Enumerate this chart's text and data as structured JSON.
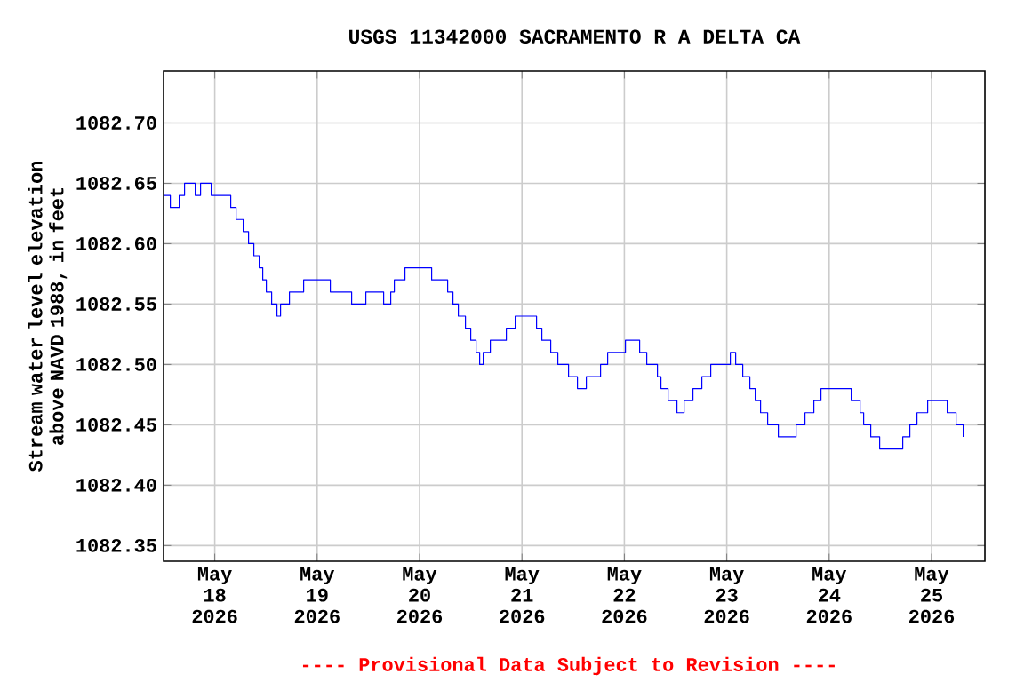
{
  "chart_data": {
    "type": "step",
    "title": "USGS 11342000 SACRAMENTO R A DELTA CA",
    "ylabel": "Stream water level elevation above NAVD 1988, in feet",
    "annotations": [
      "---- Provisional Data Subject to Revision ----"
    ],
    "x": [
      "2026-05-17T12:00",
      "2026-05-17T13:35",
      "2026-05-17T15:40",
      "2026-05-17T16:55",
      "2026-05-17T19:25",
      "2026-05-17T20:40",
      "2026-05-17T23:10",
      "2026-05-18T03:45",
      "2026-05-18T05:00",
      "2026-05-18T06:40",
      "2026-05-18T07:55",
      "2026-05-18T09:10",
      "2026-05-18T10:25",
      "2026-05-18T11:15",
      "2026-05-18T12:05",
      "2026-05-18T13:20",
      "2026-05-18T14:35",
      "2026-05-18T15:25",
      "2026-05-18T17:30",
      "2026-05-18T20:50",
      "2026-05-19T03:05",
      "2026-05-19T08:05",
      "2026-05-19T11:25",
      "2026-05-19T15:35",
      "2026-05-19T17:15",
      "2026-05-19T18:05",
      "2026-05-19T20:35",
      "2026-05-20T02:50",
      "2026-05-20T06:35",
      "2026-05-20T07:50",
      "2026-05-20T09:05",
      "2026-05-20T10:45",
      "2026-05-20T12:00",
      "2026-05-20T13:15",
      "2026-05-20T14:05",
      "2026-05-20T14:55",
      "2026-05-20T16:35",
      "2026-05-20T20:20",
      "2026-05-20T22:25",
      "2026-05-21T02:35",
      "2026-05-21T03:25",
      "2026-05-21T04:40",
      "2026-05-21T06:45",
      "2026-05-21T08:25",
      "2026-05-21T10:55",
      "2026-05-21T13:00",
      "2026-05-21T15:05",
      "2026-05-21T18:25",
      "2026-05-21T20:05",
      "2026-05-22T00:15",
      "2026-05-22T03:35",
      "2026-05-22T05:15",
      "2026-05-22T07:45",
      "2026-05-22T08:35",
      "2026-05-22T10:15",
      "2026-05-22T12:20",
      "2026-05-22T14:00",
      "2026-05-22T16:05",
      "2026-05-22T18:10",
      "2026-05-22T20:15",
      "2026-05-23T00:50",
      "2026-05-23T02:05",
      "2026-05-23T03:45",
      "2026-05-23T05:25",
      "2026-05-23T06:40",
      "2026-05-23T07:55",
      "2026-05-23T09:35",
      "2026-05-23T12:05",
      "2026-05-23T15:00",
      "2026-05-23T16:15",
      "2026-05-23T18:20",
      "2026-05-23T20:25",
      "2026-05-23T22:05",
      "2026-05-24T03:55",
      "2026-05-24T05:10",
      "2026-05-24T07:15",
      "2026-05-24T08:05",
      "2026-05-24T09:45",
      "2026-05-24T11:50",
      "2026-05-24T16:00",
      "2026-05-24T17:15",
      "2026-05-24T18:55",
      "2026-05-24T20:35",
      "2026-05-24T23:05",
      "2026-05-25T02:25",
      "2026-05-25T03:40",
      "2026-05-25T05:45",
      "2026-05-25T07:25"
    ],
    "series": [
      {
        "color": "#0000ff",
        "values": [
          1082.64,
          1082.63,
          1082.64,
          1082.65,
          1082.64,
          1082.65,
          1082.64,
          1082.63,
          1082.62,
          1082.61,
          1082.6,
          1082.59,
          1082.58,
          1082.57,
          1082.56,
          1082.55,
          1082.54,
          1082.55,
          1082.56,
          1082.57,
          1082.56,
          1082.55,
          1082.56,
          1082.55,
          1082.56,
          1082.57,
          1082.58,
          1082.57,
          1082.56,
          1082.55,
          1082.54,
          1082.53,
          1082.52,
          1082.51,
          1082.5,
          1082.51,
          1082.52,
          1082.53,
          1082.54,
          1082.54,
          1082.53,
          1082.52,
          1082.51,
          1082.5,
          1082.49,
          1082.48,
          1082.49,
          1082.5,
          1082.51,
          1082.52,
          1082.51,
          1082.5,
          1082.49,
          1082.48,
          1082.47,
          1082.46,
          1082.47,
          1082.48,
          1082.49,
          1082.5,
          1082.51,
          1082.5,
          1082.49,
          1082.48,
          1082.47,
          1082.46,
          1082.45,
          1082.44,
          1082.44,
          1082.45,
          1082.46,
          1082.47,
          1082.48,
          1082.48,
          1082.47,
          1082.46,
          1082.45,
          1082.44,
          1082.43,
          1082.43,
          1082.44,
          1082.45,
          1082.46,
          1082.47,
          1082.47,
          1082.46,
          1082.45,
          1082.44
        ]
      }
    ],
    "xlim": [
      "2026-05-17T12:00",
      "2026-05-25T12:30"
    ],
    "xticks": [
      {
        "value": "2026-05-18",
        "label": "May 18 2026"
      },
      {
        "value": "2026-05-19",
        "label": "May 19 2026"
      },
      {
        "value": "2026-05-20",
        "label": "May 20 2026"
      },
      {
        "value": "2026-05-21",
        "label": "May 21 2026"
      },
      {
        "value": "2026-05-22",
        "label": "May 22 2026"
      },
      {
        "value": "2026-05-23",
        "label": "May 23 2026"
      },
      {
        "value": "2026-05-24",
        "label": "May 24 2026"
      },
      {
        "value": "2026-05-25",
        "label": "May 25 2026"
      }
    ],
    "ylim": [
      1082.337,
      1082.743
    ],
    "yticks": [
      {
        "value": 1082.35,
        "label": "1082.35"
      },
      {
        "value": 1082.4,
        "label": "1082.40"
      },
      {
        "value": 1082.45,
        "label": "1082.45"
      },
      {
        "value": 1082.5,
        "label": "1082.50"
      },
      {
        "value": 1082.55,
        "label": "1082.55"
      },
      {
        "value": 1082.6,
        "label": "1082.60"
      },
      {
        "value": 1082.65,
        "label": "1082.65"
      },
      {
        "value": 1082.7,
        "label": "1082.70"
      }
    ],
    "grid": true,
    "marker": "none",
    "line_style": "solid"
  }
}
